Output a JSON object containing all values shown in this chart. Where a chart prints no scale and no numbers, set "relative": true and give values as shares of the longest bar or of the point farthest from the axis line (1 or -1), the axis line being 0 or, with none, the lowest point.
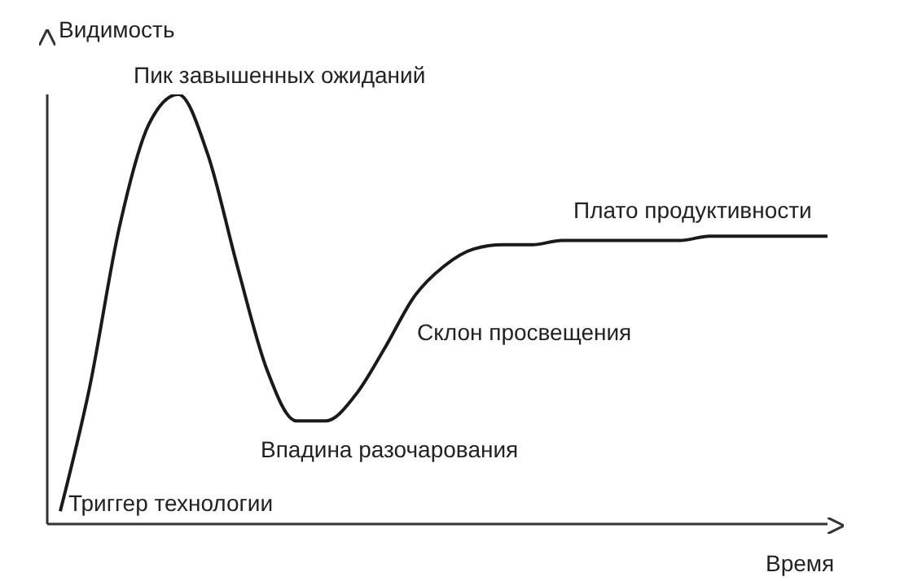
{
  "chart_data": {
    "type": "line",
    "relative": true,
    "xlabel": "Время",
    "ylabel": "Видимость",
    "categories": [
      null,
      null,
      null,
      null,
      null,
      null,
      null,
      null,
      null,
      null,
      null,
      null,
      null,
      null,
      null,
      null,
      null,
      null,
      null,
      null,
      null,
      null,
      null,
      null,
      null,
      null,
      null
    ],
    "series": [
      {
        "color": "#1a1a1a",
        "values": [
          0.03,
          0.32,
          0.69,
          0.93,
          1,
          0.86,
          0.6,
          0.36,
          0.24,
          0.24,
          0.3,
          0.41,
          0.53,
          0.6,
          0.64,
          0.65,
          0.65,
          0.66,
          0.66,
          0.66,
          0.66,
          0.66,
          0.67,
          0.67,
          0.67,
          0.67,
          0.67
        ]
      }
    ],
    "annotations": [
      "Пик завышенных ожиданий",
      "Плато продуктивности",
      "Склон просвещения",
      "Впадина разочарования",
      "Триггер технологии"
    ]
  }
}
